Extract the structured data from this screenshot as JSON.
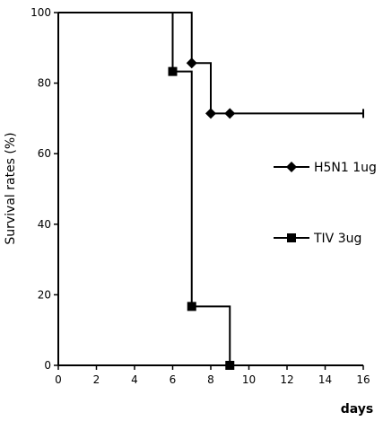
{
  "chart_data": {
    "type": "step",
    "xlabel": "days",
    "ylabel": "Survival rates (%)",
    "xlim": [
      0,
      16
    ],
    "xticks": [
      0,
      2,
      4,
      6,
      8,
      10,
      12,
      14,
      16
    ],
    "ylim": [
      0,
      100
    ],
    "yticks": [
      0,
      20,
      40,
      60,
      80,
      100
    ],
    "series": [
      {
        "name": "H5N1 1ug",
        "color": "#000000",
        "marker": "diamond",
        "x": [
          0,
          7,
          8,
          9,
          16
        ],
        "values": [
          100,
          85.7,
          71.4,
          71.4,
          71.4
        ]
      },
      {
        "name": "TIV 3ug",
        "color": "#000000",
        "marker": "square",
        "x": [
          0,
          6,
          7,
          9
        ],
        "values": [
          100,
          83.3,
          16.7,
          0
        ]
      }
    ]
  }
}
